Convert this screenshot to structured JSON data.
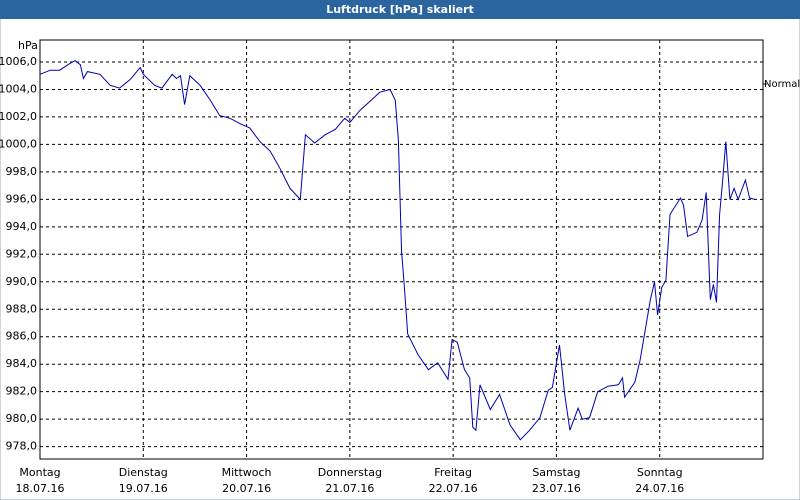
{
  "chart_data": {
    "type": "line",
    "title": "Luftdruck [hPa] skaliert",
    "y_label": "hPa",
    "xlim": [
      0,
      7
    ],
    "xticks": [
      {
        "value": 0,
        "label": "Montag"
      },
      {
        "value": 1,
        "label": "Dienstag"
      },
      {
        "value": 2,
        "label": "Mittwoch"
      },
      {
        "value": 3,
        "label": "Donnerstag"
      },
      {
        "value": 4,
        "label": "Freitag"
      },
      {
        "value": 5,
        "label": "Samstag"
      },
      {
        "value": 6,
        "label": "Sonntag"
      }
    ],
    "xtick_dates": [
      "18.07.16",
      "19.07.16",
      "20.07.16",
      "21.07.16",
      "22.07.16",
      "23.07.16",
      "24.07.16"
    ],
    "ylim": [
      977.1,
      1007.6
    ],
    "yticks": [
      {
        "value": 978,
        "label": "978,0"
      },
      {
        "value": 980,
        "label": "980,0"
      },
      {
        "value": 982,
        "label": "982,0"
      },
      {
        "value": 984,
        "label": "984,0"
      },
      {
        "value": 986,
        "label": "986,0"
      },
      {
        "value": 988,
        "label": "988,0"
      },
      {
        "value": 990,
        "label": "990,0"
      },
      {
        "value": 992,
        "label": "992,0"
      },
      {
        "value": 994,
        "label": "994,0"
      },
      {
        "value": 996,
        "label": "996,0"
      },
      {
        "value": 998,
        "label": "998,0"
      },
      {
        "value": 1000,
        "label": "1000,0"
      },
      {
        "value": 1002,
        "label": "1002,0"
      },
      {
        "value": 1004,
        "label": "1004,0"
      },
      {
        "value": 1006,
        "label": "1006,0"
      }
    ],
    "grid": true,
    "normal": {
      "label": "Normal",
      "value": 1004.4
    },
    "series": [
      {
        "color": "#0000b4",
        "x": [
          0.0,
          0.1,
          0.19,
          0.29,
          0.34,
          0.39,
          0.42,
          0.46,
          0.58,
          0.68,
          0.77,
          0.87,
          0.97,
          1.0,
          1.11,
          1.18,
          1.28,
          1.32,
          1.36,
          1.4,
          1.45,
          1.55,
          1.65,
          1.74,
          1.84,
          1.94,
          2.03,
          2.13,
          2.23,
          2.32,
          2.42,
          2.52,
          2.57,
          2.66,
          2.76,
          2.86,
          2.95,
          3.0,
          3.1,
          3.19,
          3.29,
          3.39,
          3.44,
          3.47,
          3.5,
          3.53,
          3.56,
          3.66,
          3.76,
          3.85,
          3.95,
          3.99,
          4.04,
          4.11,
          4.16,
          4.19,
          4.22,
          4.26,
          4.36,
          4.45,
          4.55,
          4.65,
          4.74,
          4.84,
          4.92,
          4.96,
          5.03,
          5.08,
          5.13,
          5.21,
          5.25,
          5.32,
          5.4,
          5.5,
          5.6,
          5.64,
          5.66,
          5.76,
          5.81,
          5.91,
          5.95,
          5.98,
          6.02,
          6.06,
          6.1,
          6.2,
          6.23,
          6.27,
          6.36,
          6.41,
          6.45,
          6.49,
          6.52,
          6.55,
          6.58,
          6.61,
          6.64,
          6.68,
          6.72,
          6.76,
          6.83,
          6.87,
          6.92
        ],
        "values": [
          1005.1,
          1005.4,
          1005.4,
          1005.9,
          1006.1,
          1005.8,
          1004.8,
          1005.3,
          1005.1,
          1004.3,
          1004.1,
          1004.7,
          1005.6,
          1005.1,
          1004.3,
          1004.1,
          1005.1,
          1004.8,
          1005.0,
          1002.9,
          1005.0,
          1004.3,
          1003.2,
          1002.1,
          1001.9,
          1001.5,
          1001.2,
          1000.2,
          999.5,
          998.3,
          996.8,
          996.0,
          1000.7,
          1000.1,
          1000.7,
          1001.1,
          1001.9,
          1001.6,
          1002.5,
          1003.1,
          1003.8,
          1004.0,
          1003.2,
          1000.3,
          992.3,
          989.4,
          986.2,
          984.7,
          983.6,
          984.1,
          982.9,
          985.8,
          985.6,
          983.6,
          983.0,
          979.4,
          979.2,
          982.5,
          980.7,
          981.8,
          979.6,
          978.5,
          979.2,
          980.1,
          982.1,
          982.3,
          985.4,
          981.8,
          979.2,
          980.8,
          980.0,
          980.1,
          982.0,
          982.4,
          982.5,
          983.0,
          981.6,
          982.7,
          984.3,
          988.7,
          990.0,
          987.6,
          989.6,
          990.1,
          994.9,
          996.1,
          995.6,
          993.3,
          993.6,
          994.5,
          996.5,
          988.7,
          989.8,
          988.5,
          994.9,
          997.4,
          1000.2,
          996.0,
          996.8,
          996.0,
          997.4,
          996.1,
          996.0
        ]
      }
    ]
  }
}
